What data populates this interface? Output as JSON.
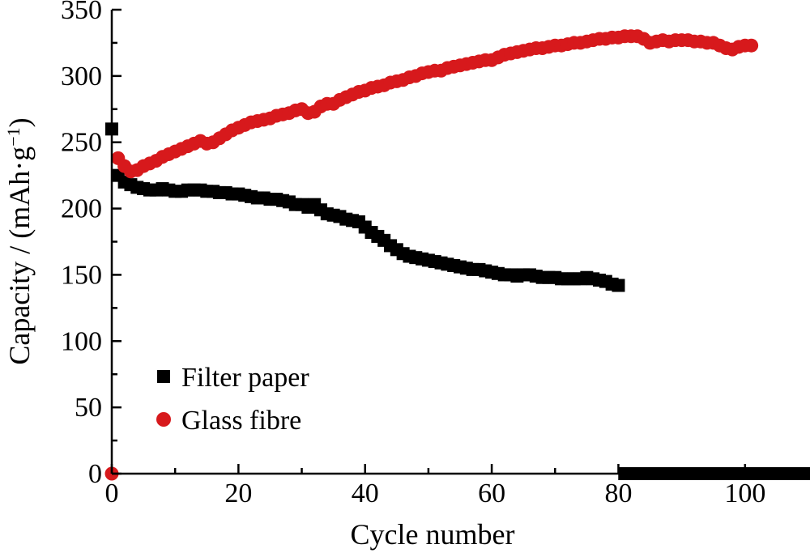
{
  "chart_data": {
    "type": "scatter",
    "title": "",
    "xlabel": "Cycle number",
    "ylabel": "Capacity / (mAh·g",
    "ylabel_unit_superscript": "−1",
    "ylabel_suffix": ")",
    "xlim": [
      0,
      110
    ],
    "ylim": [
      0,
      350
    ],
    "x_ticks": [
      0,
      20,
      40,
      60,
      80,
      100
    ],
    "y_ticks": [
      0,
      50,
      100,
      150,
      200,
      250,
      300,
      350
    ],
    "x_minor_step": 10,
    "y_minor_step": 25,
    "grid": false,
    "legend_position": "bottom-left",
    "series": [
      {
        "name": "Filter paper",
        "marker": "square",
        "color": "#000000",
        "x": [
          0,
          1,
          2,
          3,
          4,
          5,
          6,
          7,
          8,
          9,
          10,
          11,
          12,
          13,
          14,
          15,
          16,
          17,
          18,
          19,
          20,
          21,
          22,
          23,
          24,
          25,
          26,
          27,
          28,
          29,
          30,
          31,
          32,
          33,
          34,
          35,
          36,
          37,
          38,
          39,
          40,
          41,
          42,
          43,
          44,
          45,
          46,
          47,
          48,
          49,
          50,
          51,
          52,
          53,
          54,
          55,
          56,
          57,
          58,
          59,
          60,
          61,
          62,
          63,
          64,
          65,
          66,
          67,
          68,
          69,
          70,
          71,
          72,
          73,
          74,
          75,
          76,
          77,
          78,
          79,
          80,
          81,
          82,
          83,
          84,
          85,
          86,
          87,
          88,
          89,
          90,
          91,
          92,
          93,
          94,
          95,
          96,
          97,
          98,
          99,
          100,
          101,
          102,
          103,
          104,
          105,
          106,
          107,
          108,
          109,
          110
        ],
        "y": [
          260,
          225,
          220,
          218,
          216,
          215,
          214,
          214,
          215,
          214,
          213,
          213,
          214,
          214,
          214,
          213,
          213,
          212,
          212,
          211,
          211,
          210,
          209,
          208,
          208,
          207,
          207,
          206,
          205,
          203,
          203,
          201,
          203,
          199,
          196,
          195,
          194,
          192,
          191,
          190,
          186,
          182,
          179,
          176,
          172,
          169,
          166,
          164,
          163,
          162,
          161,
          160,
          159,
          158,
          157,
          156,
          155,
          154,
          154,
          153,
          152,
          151,
          150,
          150,
          149,
          150,
          150,
          149,
          148,
          148,
          148,
          147,
          147,
          147,
          147,
          148,
          147,
          146,
          145,
          143,
          142,
          0,
          0,
          0,
          0,
          0,
          0,
          0,
          0,
          0,
          0,
          0,
          0,
          0,
          0,
          0,
          0,
          0,
          0,
          0,
          0,
          0,
          0,
          0,
          0,
          0,
          0,
          0,
          0,
          0,
          0
        ]
      },
      {
        "name": "Glass fibre",
        "marker": "circle",
        "color": "#d7191c",
        "x": [
          0,
          1,
          2,
          3,
          4,
          5,
          6,
          7,
          8,
          9,
          10,
          11,
          12,
          13,
          14,
          15,
          16,
          17,
          18,
          19,
          20,
          21,
          22,
          23,
          24,
          25,
          26,
          27,
          28,
          29,
          30,
          31,
          32,
          33,
          34,
          35,
          36,
          37,
          38,
          39,
          40,
          41,
          42,
          43,
          44,
          45,
          46,
          47,
          48,
          49,
          50,
          51,
          52,
          53,
          54,
          55,
          56,
          57,
          58,
          59,
          60,
          61,
          62,
          63,
          64,
          65,
          66,
          67,
          68,
          69,
          70,
          71,
          72,
          73,
          74,
          75,
          76,
          77,
          78,
          79,
          80,
          81,
          82,
          83,
          84,
          85,
          86,
          87,
          88,
          89,
          90,
          91,
          92,
          93,
          94,
          95,
          96,
          97,
          98,
          99,
          100,
          101
        ],
        "y": [
          0,
          238,
          232,
          228,
          229,
          232,
          234,
          236,
          239,
          241,
          243,
          245,
          247,
          249,
          251,
          249,
          250,
          253,
          256,
          259,
          261,
          263,
          265,
          266,
          267,
          268,
          270,
          271,
          272,
          274,
          275,
          272,
          273,
          277,
          279,
          279,
          282,
          284,
          286,
          288,
          289,
          291,
          292,
          293,
          295,
          296,
          297,
          299,
          300,
          302,
          303,
          304,
          304,
          306,
          307,
          308,
          309,
          310,
          311,
          312,
          312,
          314,
          316,
          317,
          318,
          319,
          320,
          321,
          321,
          322,
          323,
          323,
          324,
          325,
          325,
          326,
          327,
          328,
          328,
          329,
          329,
          330,
          330,
          330,
          328,
          325,
          326,
          327,
          326,
          327,
          327,
          327,
          326,
          326,
          325,
          325,
          323,
          321,
          320,
          322,
          323,
          323
        ]
      }
    ]
  }
}
